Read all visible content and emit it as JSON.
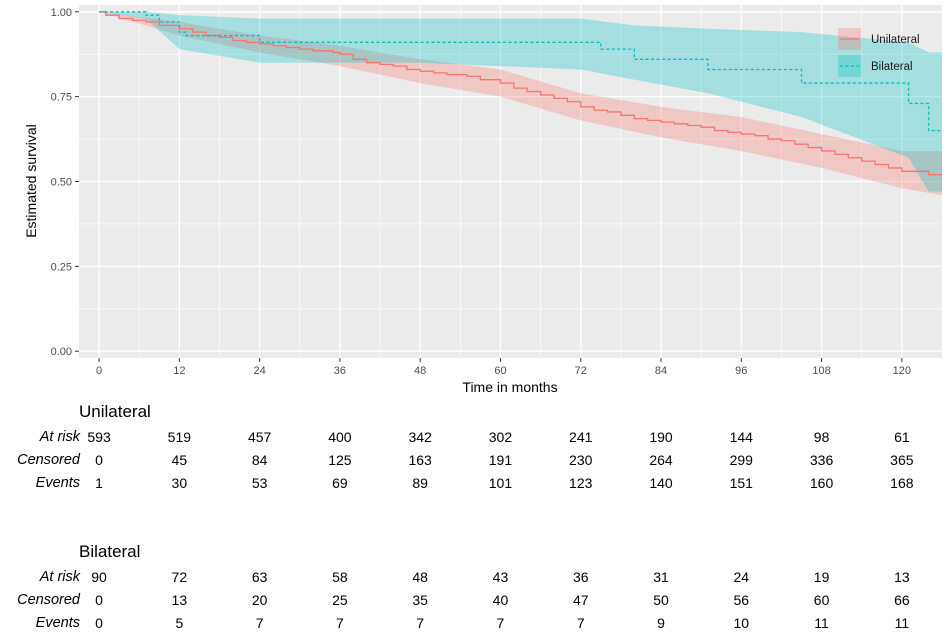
{
  "chart_data": {
    "type": "line",
    "subtype": "kaplan-meier",
    "title": "",
    "xlabel": "Time in months",
    "ylabel": "Estimated survival",
    "xlim": [
      -3,
      126
    ],
    "ylim": [
      -0.02,
      1.02
    ],
    "x_ticks": [
      0,
      12,
      24,
      36,
      48,
      60,
      72,
      84,
      96,
      108,
      120
    ],
    "x_tick_labels": [
      "0",
      "12",
      "24",
      "36",
      "48",
      "60",
      "72",
      "84",
      "96",
      "108",
      "120"
    ],
    "y_ticks": [
      0,
      0.25,
      0.5,
      0.75,
      1.0
    ],
    "y_tick_labels": [
      "0.00",
      "0.25",
      "0.50",
      "0.75",
      "1.00"
    ],
    "grid": true,
    "legend_position": "top-right",
    "series": [
      {
        "name": "Unilateral",
        "color": "#f8766d",
        "line_style": "solid",
        "points": [
          [
            0,
            1.0
          ],
          [
            1,
            0.99
          ],
          [
            3,
            0.98
          ],
          [
            5,
            0.975
          ],
          [
            7,
            0.97
          ],
          [
            9,
            0.96
          ],
          [
            12,
            0.95
          ],
          [
            14,
            0.94
          ],
          [
            16,
            0.93
          ],
          [
            18,
            0.925
          ],
          [
            20,
            0.915
          ],
          [
            22,
            0.91
          ],
          [
            24,
            0.905
          ],
          [
            26,
            0.9
          ],
          [
            28,
            0.895
          ],
          [
            30,
            0.89
          ],
          [
            32,
            0.885
          ],
          [
            35,
            0.88
          ],
          [
            36,
            0.875
          ],
          [
            38,
            0.86
          ],
          [
            40,
            0.85
          ],
          [
            42,
            0.845
          ],
          [
            44,
            0.84
          ],
          [
            46,
            0.83
          ],
          [
            48,
            0.825
          ],
          [
            50,
            0.82
          ],
          [
            52,
            0.815
          ],
          [
            55,
            0.81
          ],
          [
            57,
            0.8
          ],
          [
            60,
            0.79
          ],
          [
            62,
            0.775
          ],
          [
            64,
            0.765
          ],
          [
            66,
            0.755
          ],
          [
            68,
            0.745
          ],
          [
            70,
            0.735
          ],
          [
            72,
            0.72
          ],
          [
            74,
            0.71
          ],
          [
            76,
            0.705
          ],
          [
            78,
            0.695
          ],
          [
            80,
            0.685
          ],
          [
            82,
            0.68
          ],
          [
            84,
            0.675
          ],
          [
            86,
            0.67
          ],
          [
            88,
            0.665
          ],
          [
            90,
            0.66
          ],
          [
            92,
            0.65
          ],
          [
            94,
            0.645
          ],
          [
            96,
            0.64
          ],
          [
            98,
            0.635
          ],
          [
            100,
            0.625
          ],
          [
            102,
            0.62
          ],
          [
            104,
            0.61
          ],
          [
            106,
            0.6
          ],
          [
            108,
            0.59
          ],
          [
            110,
            0.58
          ],
          [
            112,
            0.57
          ],
          [
            114,
            0.56
          ],
          [
            116,
            0.55
          ],
          [
            118,
            0.54
          ],
          [
            120,
            0.53
          ],
          [
            124,
            0.52
          ],
          [
            126,
            0.52
          ]
        ],
        "ci_lower": [
          [
            0,
            1.0
          ],
          [
            12,
            0.93
          ],
          [
            24,
            0.88
          ],
          [
            36,
            0.84
          ],
          [
            48,
            0.79
          ],
          [
            60,
            0.75
          ],
          [
            72,
            0.68
          ],
          [
            84,
            0.63
          ],
          [
            96,
            0.59
          ],
          [
            108,
            0.54
          ],
          [
            120,
            0.48
          ],
          [
            126,
            0.46
          ]
        ],
        "ci_upper": [
          [
            0,
            1.0
          ],
          [
            12,
            0.97
          ],
          [
            24,
            0.93
          ],
          [
            36,
            0.9
          ],
          [
            48,
            0.86
          ],
          [
            60,
            0.83
          ],
          [
            72,
            0.76
          ],
          [
            84,
            0.72
          ],
          [
            96,
            0.69
          ],
          [
            108,
            0.64
          ],
          [
            120,
            0.59
          ],
          [
            126,
            0.59
          ]
        ]
      },
      {
        "name": "Bilateral",
        "color": "#00bfc4",
        "line_style": "dashed",
        "points": [
          [
            0,
            1.0
          ],
          [
            7,
            1.0
          ],
          [
            7,
            0.99
          ],
          [
            9,
            0.97
          ],
          [
            12,
            0.94
          ],
          [
            13,
            0.93
          ],
          [
            24,
            0.93
          ],
          [
            24,
            0.91
          ],
          [
            75,
            0.91
          ],
          [
            75,
            0.89
          ],
          [
            80,
            0.89
          ],
          [
            80,
            0.86
          ],
          [
            91,
            0.86
          ],
          [
            91,
            0.83
          ],
          [
            105,
            0.83
          ],
          [
            105,
            0.79
          ],
          [
            121,
            0.79
          ],
          [
            121,
            0.73
          ],
          [
            124,
            0.73
          ],
          [
            124,
            0.65
          ],
          [
            126,
            0.65
          ]
        ],
        "ci_lower": [
          [
            0,
            1.0
          ],
          [
            7,
            0.98
          ],
          [
            12,
            0.89
          ],
          [
            24,
            0.85
          ],
          [
            48,
            0.85
          ],
          [
            72,
            0.83
          ],
          [
            80,
            0.8
          ],
          [
            91,
            0.76
          ],
          [
            105,
            0.69
          ],
          [
            121,
            0.57
          ],
          [
            124,
            0.47
          ],
          [
            126,
            0.47
          ]
        ],
        "ci_upper": [
          [
            0,
            1.0
          ],
          [
            7,
            1.0
          ],
          [
            12,
            0.99
          ],
          [
            24,
            0.98
          ],
          [
            48,
            0.98
          ],
          [
            72,
            0.98
          ],
          [
            80,
            0.96
          ],
          [
            91,
            0.95
          ],
          [
            105,
            0.94
          ],
          [
            121,
            0.91
          ],
          [
            124,
            0.88
          ],
          [
            126,
            0.88
          ]
        ]
      }
    ]
  },
  "risk_table": {
    "row_labels": [
      "At risk",
      "Censored",
      "Events"
    ],
    "time_points": [
      0,
      12,
      24,
      36,
      48,
      60,
      72,
      84,
      96,
      108,
      120
    ],
    "groups": [
      {
        "name": "Unilateral",
        "at_risk": [
          "593",
          "519",
          "457",
          "400",
          "342",
          "302",
          "241",
          "190",
          "144",
          "98",
          "61"
        ],
        "censored": [
          "0",
          "45",
          "84",
          "125",
          "163",
          "191",
          "230",
          "264",
          "299",
          "336",
          "365"
        ],
        "events": [
          "1",
          "30",
          "53",
          "69",
          "89",
          "101",
          "123",
          "140",
          "151",
          "160",
          "168"
        ]
      },
      {
        "name": "Bilateral",
        "at_risk": [
          "90",
          "72",
          "63",
          "58",
          "48",
          "43",
          "36",
          "31",
          "24",
          "19",
          "13"
        ],
        "censored": [
          "0",
          "13",
          "20",
          "25",
          "35",
          "40",
          "47",
          "50",
          "56",
          "60",
          "66"
        ],
        "events": [
          "0",
          "5",
          "7",
          "7",
          "7",
          "7",
          "7",
          "9",
          "10",
          "11",
          "11"
        ]
      }
    ]
  }
}
